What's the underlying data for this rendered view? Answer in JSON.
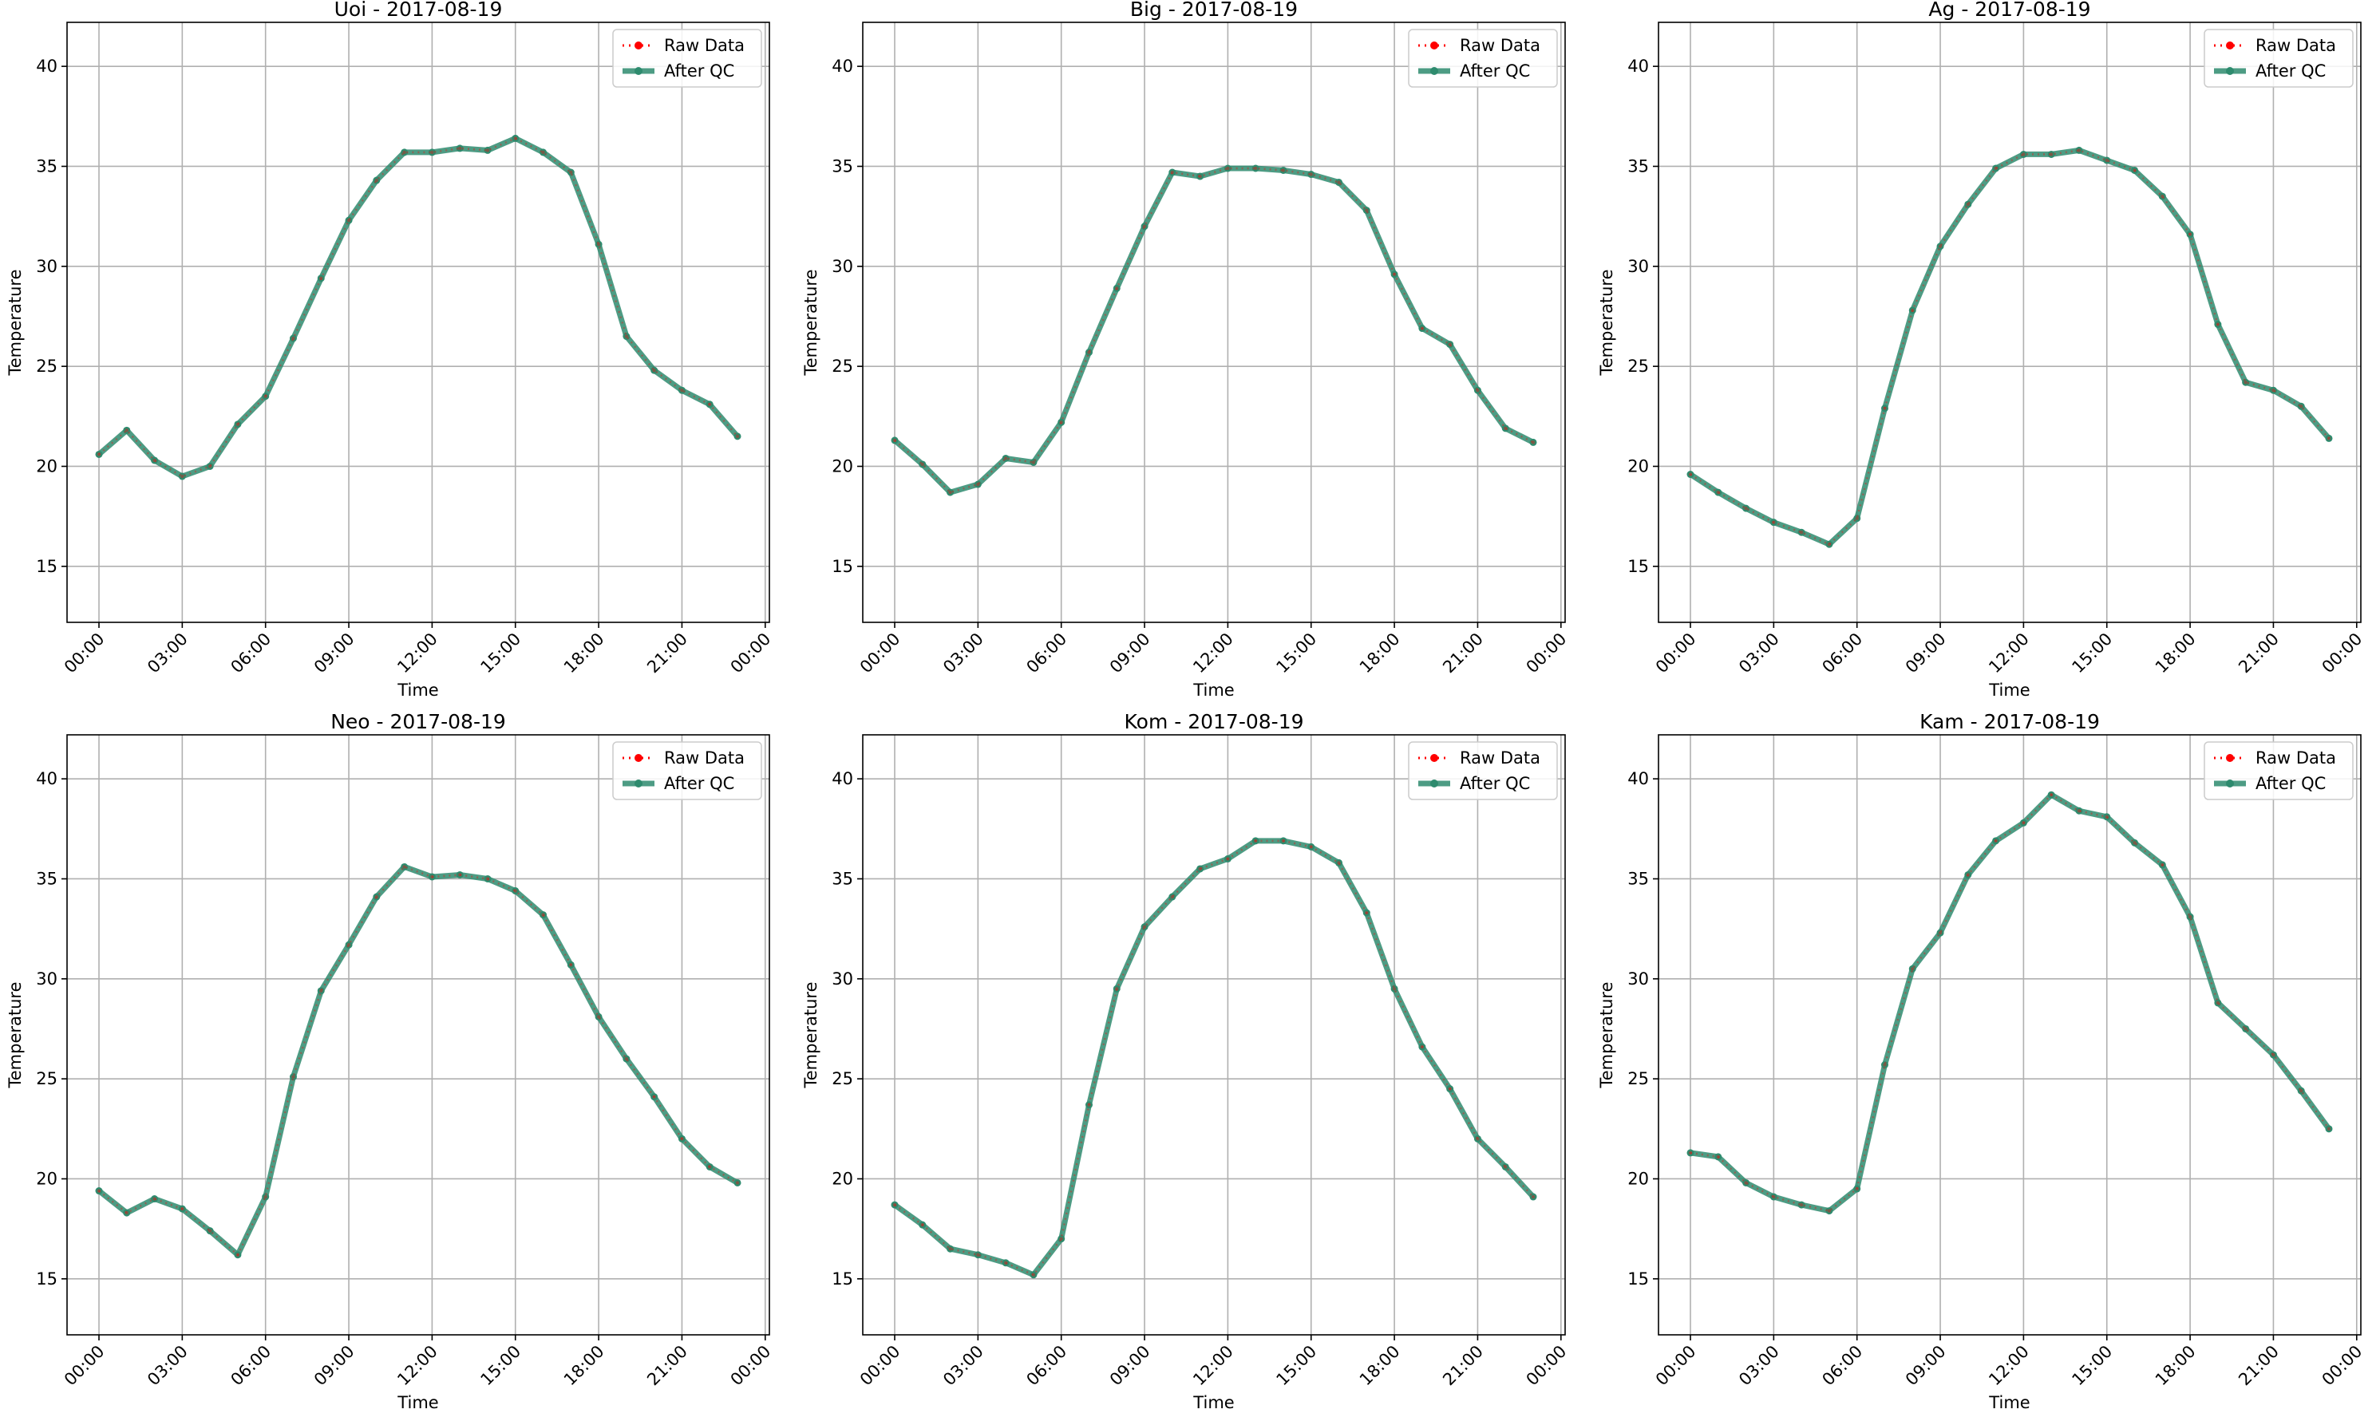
{
  "colors": {
    "raw": "#ff0000",
    "after_qc": "#2e8b6e",
    "grid": "#b0b0b0",
    "axis": "#000000"
  },
  "legend": {
    "raw_label": "Raw Data",
    "qc_label": "After QC",
    "placement": "upper-right"
  },
  "chart_data": [
    {
      "type": "line",
      "title": "Uoi - 2017-08-19",
      "xlabel": "Time",
      "ylabel": "Temperature",
      "ylim": [
        12.2,
        42.2
      ],
      "yticks": [
        15,
        20,
        25,
        30,
        35,
        40
      ],
      "xticks": [
        "00:00",
        "03:00",
        "06:00",
        "09:00",
        "12:00",
        "15:00",
        "18:00",
        "21:00",
        "00:00"
      ],
      "grid": true,
      "x_hours": [
        0,
        1,
        2,
        3,
        4,
        5,
        6,
        7,
        8,
        9,
        10,
        11,
        12,
        13,
        14,
        15,
        16,
        17,
        18,
        19,
        20,
        21,
        22,
        23
      ],
      "series": [
        {
          "name": "Raw Data",
          "values": [
            20.6,
            21.8,
            20.3,
            19.5,
            20.0,
            22.1,
            23.5,
            26.4,
            29.4,
            32.3,
            34.3,
            35.7,
            35.7,
            35.9,
            35.8,
            36.4,
            35.7,
            34.7,
            31.1,
            26.5,
            24.8,
            23.8,
            23.1,
            21.5
          ]
        },
        {
          "name": "After QC",
          "values": [
            20.6,
            21.8,
            20.3,
            19.5,
            20.0,
            22.1,
            23.5,
            26.4,
            29.4,
            32.3,
            34.3,
            35.7,
            35.7,
            35.9,
            35.8,
            36.4,
            35.7,
            34.7,
            31.1,
            26.5,
            24.8,
            23.8,
            23.1,
            21.5
          ]
        }
      ]
    },
    {
      "type": "line",
      "title": "Big - 2017-08-19",
      "xlabel": "Time",
      "ylabel": "Temperature",
      "ylim": [
        12.2,
        42.2
      ],
      "yticks": [
        15,
        20,
        25,
        30,
        35,
        40
      ],
      "xticks": [
        "00:00",
        "03:00",
        "06:00",
        "09:00",
        "12:00",
        "15:00",
        "18:00",
        "21:00",
        "00:00"
      ],
      "grid": true,
      "x_hours": [
        0,
        1,
        2,
        3,
        4,
        5,
        6,
        7,
        8,
        9,
        10,
        11,
        12,
        13,
        14,
        15,
        16,
        17,
        18,
        19,
        20,
        21,
        22,
        23
      ],
      "series": [
        {
          "name": "Raw Data",
          "values": [
            21.3,
            20.1,
            18.7,
            19.1,
            20.4,
            20.2,
            22.2,
            25.7,
            28.9,
            32.0,
            34.7,
            34.5,
            34.9,
            34.9,
            34.8,
            34.6,
            34.2,
            32.8,
            29.6,
            26.9,
            26.1,
            23.8,
            21.9,
            21.2
          ]
        },
        {
          "name": "After QC",
          "values": [
            21.3,
            20.1,
            18.7,
            19.1,
            20.4,
            20.2,
            22.2,
            25.7,
            28.9,
            32.0,
            34.7,
            34.5,
            34.9,
            34.9,
            34.8,
            34.6,
            34.2,
            32.8,
            29.6,
            26.9,
            26.1,
            23.8,
            21.9,
            21.2
          ]
        }
      ]
    },
    {
      "type": "line",
      "title": "Ag - 2017-08-19",
      "xlabel": "Time",
      "ylabel": "Temperature",
      "ylim": [
        12.2,
        42.2
      ],
      "yticks": [
        15,
        20,
        25,
        30,
        35,
        40
      ],
      "xticks": [
        "00:00",
        "03:00",
        "06:00",
        "09:00",
        "12:00",
        "15:00",
        "18:00",
        "21:00",
        "00:00"
      ],
      "grid": true,
      "x_hours": [
        0,
        1,
        2,
        3,
        4,
        5,
        6,
        7,
        8,
        9,
        10,
        11,
        12,
        13,
        14,
        15,
        16,
        17,
        18,
        19,
        20,
        21,
        22,
        23
      ],
      "series": [
        {
          "name": "Raw Data",
          "values": [
            19.6,
            18.7,
            17.9,
            17.2,
            16.7,
            16.1,
            17.4,
            22.9,
            27.8,
            31.0,
            33.1,
            34.9,
            35.6,
            35.6,
            35.8,
            35.3,
            34.8,
            33.5,
            31.6,
            27.1,
            24.2,
            23.8,
            23.0,
            21.4
          ]
        },
        {
          "name": "After QC",
          "values": [
            19.6,
            18.7,
            17.9,
            17.2,
            16.7,
            16.1,
            17.4,
            22.9,
            27.8,
            31.0,
            33.1,
            34.9,
            35.6,
            35.6,
            35.8,
            35.3,
            34.8,
            33.5,
            31.6,
            27.1,
            24.2,
            23.8,
            23.0,
            21.4
          ]
        }
      ]
    },
    {
      "type": "line",
      "title": "Neo - 2017-08-19",
      "xlabel": "Time",
      "ylabel": "Temperature",
      "ylim": [
        12.2,
        42.2
      ],
      "yticks": [
        15,
        20,
        25,
        30,
        35,
        40
      ],
      "xticks": [
        "00:00",
        "03:00",
        "06:00",
        "09:00",
        "12:00",
        "15:00",
        "18:00",
        "21:00",
        "00:00"
      ],
      "grid": true,
      "x_hours": [
        0,
        1,
        2,
        3,
        4,
        5,
        6,
        7,
        8,
        9,
        10,
        11,
        12,
        13,
        14,
        15,
        16,
        17,
        18,
        19,
        20,
        21,
        22,
        23
      ],
      "series": [
        {
          "name": "Raw Data",
          "values": [
            19.4,
            18.3,
            19.0,
            18.5,
            17.4,
            16.2,
            19.1,
            25.1,
            29.4,
            31.7,
            34.1,
            35.6,
            35.1,
            35.2,
            35.0,
            34.4,
            33.2,
            30.7,
            28.1,
            26.0,
            24.1,
            22.0,
            20.6,
            19.8
          ]
        },
        {
          "name": "After QC",
          "values": [
            19.4,
            18.3,
            19.0,
            18.5,
            17.4,
            16.2,
            19.1,
            25.1,
            29.4,
            31.7,
            34.1,
            35.6,
            35.1,
            35.2,
            35.0,
            34.4,
            33.2,
            30.7,
            28.1,
            26.0,
            24.1,
            22.0,
            20.6,
            19.8
          ]
        }
      ]
    },
    {
      "type": "line",
      "title": "Kom - 2017-08-19",
      "xlabel": "Time",
      "ylabel": "Temperature",
      "ylim": [
        12.2,
        42.2
      ],
      "yticks": [
        15,
        20,
        25,
        30,
        35,
        40
      ],
      "xticks": [
        "00:00",
        "03:00",
        "06:00",
        "09:00",
        "12:00",
        "15:00",
        "18:00",
        "21:00",
        "00:00"
      ],
      "grid": true,
      "x_hours": [
        0,
        1,
        2,
        3,
        4,
        5,
        6,
        7,
        8,
        9,
        10,
        11,
        12,
        13,
        14,
        15,
        16,
        17,
        18,
        19,
        20,
        21,
        22,
        23
      ],
      "series": [
        {
          "name": "Raw Data",
          "values": [
            18.7,
            17.7,
            16.5,
            16.2,
            15.8,
            15.2,
            17.0,
            23.7,
            29.5,
            32.6,
            34.1,
            35.5,
            36.0,
            36.9,
            36.9,
            36.6,
            35.8,
            33.3,
            29.5,
            26.6,
            24.5,
            22.0,
            20.6,
            19.1
          ]
        },
        {
          "name": "After QC",
          "values": [
            18.7,
            17.7,
            16.5,
            16.2,
            15.8,
            15.2,
            17.0,
            23.7,
            29.5,
            32.6,
            34.1,
            35.5,
            36.0,
            36.9,
            36.9,
            36.6,
            35.8,
            33.3,
            29.5,
            26.6,
            24.5,
            22.0,
            20.6,
            19.1
          ]
        }
      ]
    },
    {
      "type": "line",
      "title": "Kam - 2017-08-19",
      "xlabel": "Time",
      "ylabel": "Temperature",
      "ylim": [
        12.2,
        42.2
      ],
      "yticks": [
        15,
        20,
        25,
        30,
        35,
        40
      ],
      "xticks": [
        "00:00",
        "03:00",
        "06:00",
        "09:00",
        "12:00",
        "15:00",
        "18:00",
        "21:00",
        "00:00"
      ],
      "grid": true,
      "x_hours": [
        0,
        1,
        2,
        3,
        4,
        5,
        6,
        7,
        8,
        9,
        10,
        11,
        12,
        13,
        14,
        15,
        16,
        17,
        18,
        19,
        20,
        21,
        22,
        23
      ],
      "series": [
        {
          "name": "Raw Data",
          "values": [
            21.3,
            21.1,
            19.8,
            19.1,
            18.7,
            18.4,
            19.5,
            25.7,
            30.5,
            32.3,
            35.2,
            36.9,
            37.8,
            39.2,
            38.4,
            38.1,
            36.8,
            35.7,
            33.1,
            28.8,
            27.5,
            26.2,
            24.4,
            22.5
          ]
        },
        {
          "name": "After QC",
          "values": [
            21.3,
            21.1,
            19.8,
            19.1,
            18.7,
            18.4,
            19.5,
            25.7,
            30.5,
            32.3,
            35.2,
            36.9,
            37.8,
            39.2,
            38.4,
            38.1,
            36.8,
            35.7,
            33.1,
            28.8,
            27.5,
            26.2,
            24.4,
            22.5
          ]
        }
      ]
    }
  ]
}
